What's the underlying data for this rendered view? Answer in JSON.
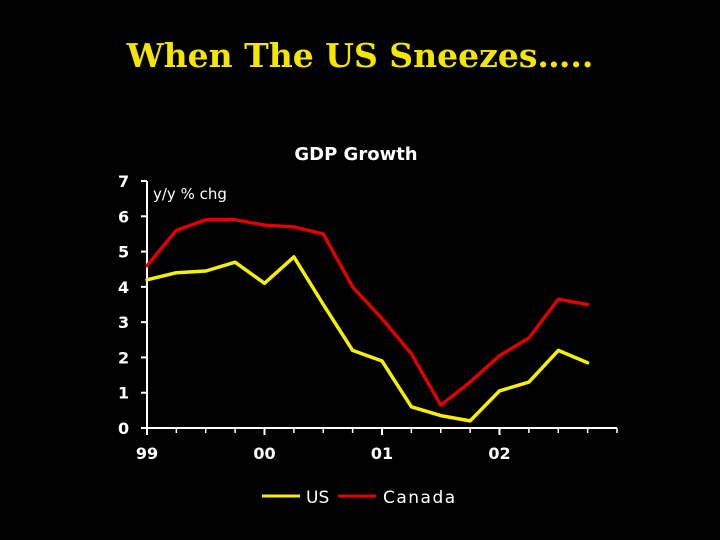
{
  "slide": {
    "title": "When The US Sneezes….."
  },
  "colors": {
    "background": "#000000",
    "title": "#f5e600",
    "us": "#f5f000",
    "canada": "#e00000",
    "axis": "#ffffff"
  },
  "chart_data": {
    "type": "line",
    "title": "GDP Growth",
    "ylabel": "y/y % chg",
    "xlabel": "",
    "ylim": [
      0,
      7
    ],
    "yticks": [
      0,
      1,
      2,
      3,
      4,
      5,
      6,
      7
    ],
    "x_range": [
      1999.0,
      2003.0
    ],
    "x_tick_labels": [
      {
        "x": 1999.0,
        "label": "99"
      },
      {
        "x": 2000.0,
        "label": "00"
      },
      {
        "x": 2001.0,
        "label": "01"
      },
      {
        "x": 2002.0,
        "label": "02"
      }
    ],
    "x_minor_ticks": [
      1999.25,
      1999.5,
      1999.75,
      2000.25,
      2000.5,
      2000.75,
      2001.25,
      2001.5,
      2001.75,
      2002.25,
      2002.5,
      2002.75,
      2003.0
    ],
    "x": [
      1999.0,
      1999.25,
      1999.5,
      1999.75,
      2000.0,
      2000.25,
      2000.5,
      2000.75,
      2001.0,
      2001.25,
      2001.5,
      2001.75,
      2002.0,
      2002.25,
      2002.5,
      2002.75
    ],
    "series": [
      {
        "name": "US",
        "color_key": "us",
        "values": [
          4.2,
          4.4,
          4.45,
          4.7,
          4.1,
          4.85,
          3.5,
          2.2,
          1.9,
          0.6,
          0.35,
          0.2,
          1.05,
          1.3,
          2.2,
          1.85
        ]
      },
      {
        "name": "Canada",
        "color_key": "canada",
        "values": [
          4.6,
          5.6,
          5.9,
          5.9,
          5.75,
          5.7,
          5.5,
          4.0,
          3.1,
          2.1,
          0.65,
          1.3,
          2.05,
          2.55,
          3.65,
          3.5
        ]
      }
    ],
    "legend": {
      "position": "bottom-center",
      "entries": [
        "US",
        "Canada"
      ]
    },
    "grid": false
  }
}
